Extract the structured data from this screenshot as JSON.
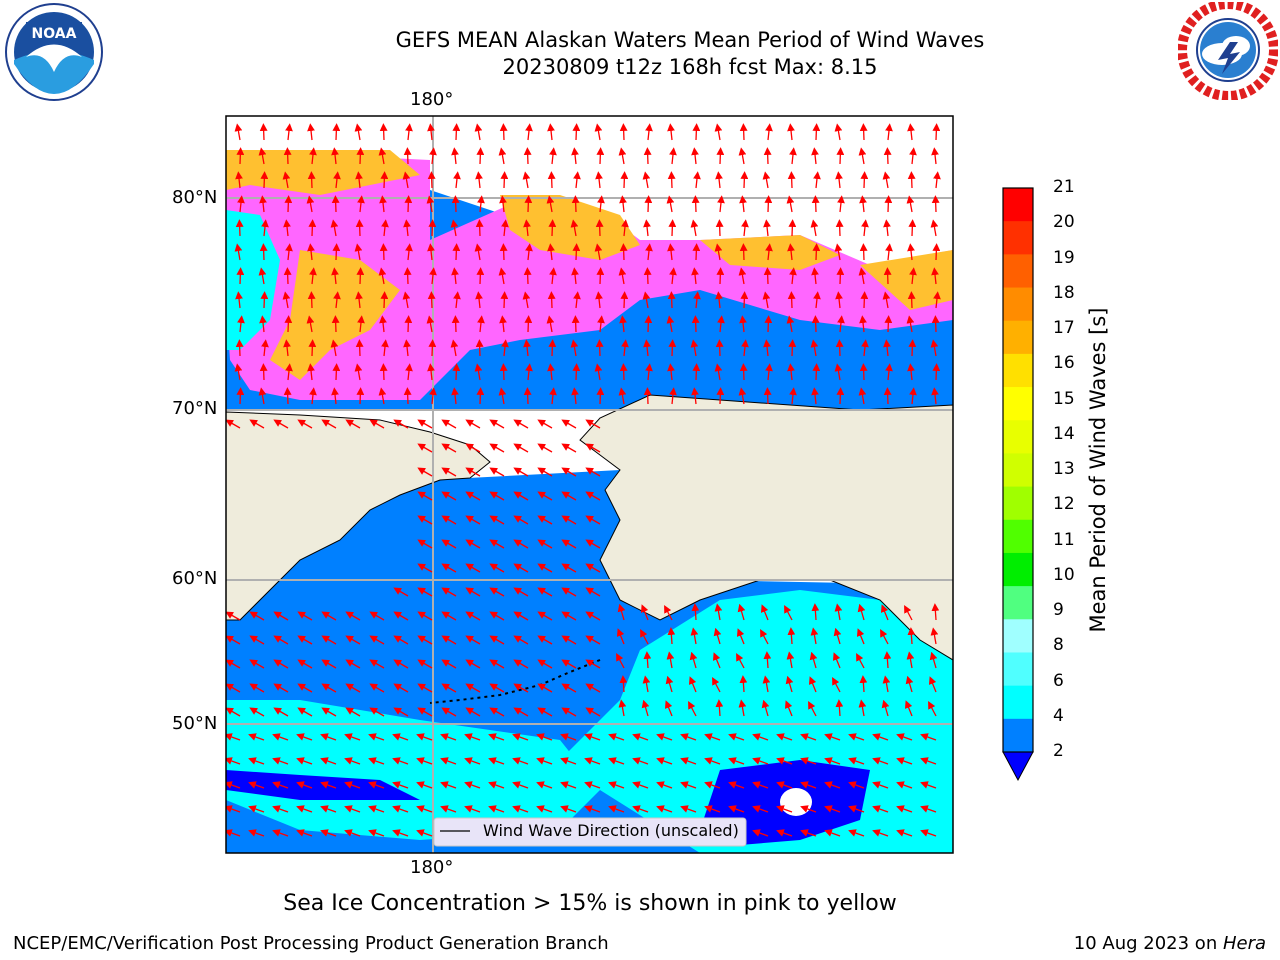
{
  "header": {
    "title_line1": "GEFS MEAN Alaskan Waters Mean Period of Wind Waves",
    "title_line2": "20230809 t12z 168h fcst   Max: 8.15"
  },
  "logos": {
    "left": "noaa-logo",
    "right": "national-weather-service-logo"
  },
  "map": {
    "lon_top_label": "180°",
    "lon_bottom_label": "180°",
    "lat_labels": [
      "80°N",
      "70°N",
      "60°N",
      "50°N"
    ],
    "legend_label": "Wind Wave Direction (unscaled)",
    "colors": {
      "land": "#efecdc",
      "ocean_2_4": "#0080ff",
      "ocean_4_6": "#00ffff",
      "ocean_lt_2": "#0000ff",
      "ice_pink": "#ff66ff",
      "ice_orange": "#ffc030",
      "arrow": "#ff0000",
      "grid": "#b0b0b0"
    }
  },
  "colorbar": {
    "label": "Mean Period of Wind Waves [s]",
    "ticks": [
      "21",
      "20",
      "19",
      "18",
      "17",
      "16",
      "15",
      "14",
      "13",
      "12",
      "11",
      "10",
      "9",
      "8",
      "6",
      "4",
      "2"
    ],
    "colors": [
      "#ff0000",
      "#ff3000",
      "#ff6000",
      "#ff8c00",
      "#ffb000",
      "#ffe000",
      "#ffff00",
      "#e8ff00",
      "#d0ff00",
      "#a0ff00",
      "#50ff00",
      "#00ee00",
      "#50ff80",
      "#a0ffff",
      "#50ffff",
      "#00ffff",
      "#0080ff"
    ],
    "extend_color": "#0000ff"
  },
  "caption": "Sea Ice Concentration > 15% is shown in pink to yellow",
  "footer": {
    "left": "NCEP/EMC/Verification Post Processing Product Generation Branch",
    "right_prefix": "10 Aug 2023 on ",
    "right_host": "Hera"
  }
}
